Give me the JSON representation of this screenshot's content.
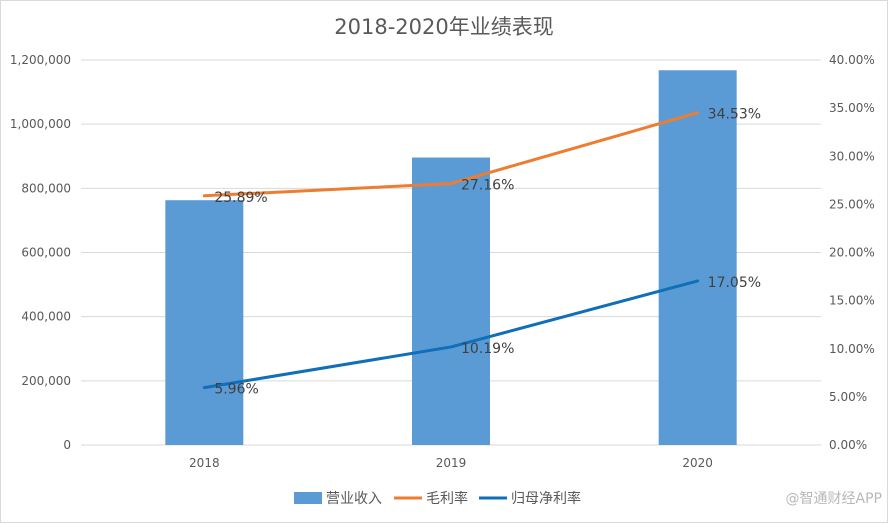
{
  "chart_data": {
    "type": "bar",
    "title": "2018-2020年业绩表现",
    "categories": [
      "2018",
      "2019",
      "2020"
    ],
    "series": [
      {
        "name": "营业收入",
        "type": "bar",
        "axis": "left",
        "color": "#5b9bd5",
        "values": [
          763000,
          896000,
          1168000
        ]
      },
      {
        "name": "毛利率",
        "type": "line",
        "axis": "right",
        "color": "#ed7d31",
        "values": [
          25.89,
          27.16,
          34.53
        ],
        "labels": [
          "25.89%",
          "27.16%",
          "34.53%"
        ]
      },
      {
        "name": "归母净利率",
        "type": "line",
        "axis": "right",
        "color": "#0f6fb9",
        "values": [
          5.96,
          10.19,
          17.05
        ],
        "labels": [
          "5.96%",
          "10.19%",
          "17.05%"
        ]
      }
    ],
    "y_left": {
      "min": 0,
      "max": 1200000,
      "ticks": [
        0,
        200000,
        400000,
        600000,
        800000,
        1000000,
        1200000
      ],
      "tick_labels": [
        "0",
        "200,000",
        "400,000",
        "600,000",
        "800,000",
        "1,000,000",
        "1,200,000"
      ]
    },
    "y_right": {
      "min": 0,
      "max": 40,
      "ticks": [
        0,
        5,
        10,
        15,
        20,
        25,
        30,
        35,
        40
      ],
      "tick_labels": [
        "0.00%",
        "5.00%",
        "10.00%",
        "15.00%",
        "20.00%",
        "25.00%",
        "30.00%",
        "35.00%",
        "40.00%"
      ]
    },
    "grid": true,
    "legend_position": "bottom"
  },
  "watermark": "@智通财经APP"
}
